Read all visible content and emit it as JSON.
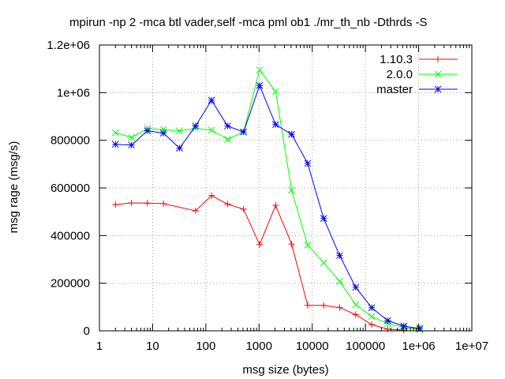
{
  "chart_data": {
    "type": "line",
    "title": "mpirun -np 2 -mca btl vader,self -mca pml ob1 ./mr_th_nb -Dthrds -S",
    "xlabel": "msg size (bytes)",
    "ylabel": "msg rage (msg/s)",
    "x_scale": "log",
    "xlim": [
      1,
      10000000
    ],
    "ylim": [
      0,
      1200000
    ],
    "grid": true,
    "legend_position": "top-right",
    "x_ticks": [
      1,
      10,
      100,
      1000,
      10000,
      100000,
      1000000,
      10000000
    ],
    "x_tick_labels": [
      "1",
      "10",
      "100",
      "1000",
      "10000",
      "100000",
      "1e+06",
      "1e+07"
    ],
    "y_ticks": [
      0,
      200000,
      400000,
      600000,
      800000,
      1000000,
      1200000
    ],
    "y_tick_labels": [
      "0",
      "200000",
      "400000",
      "600000",
      "800000",
      "1e+06",
      "1.2e+06"
    ],
    "x": [
      2,
      4,
      8,
      16,
      32,
      64,
      128,
      256,
      512,
      1024,
      2048,
      4096,
      8192,
      16384,
      32768,
      65536,
      131072,
      262144,
      524288,
      1048576
    ],
    "series": [
      {
        "name": "1.10.3",
        "color": "#ff0000",
        "marker": "plus",
        "values": [
          530000,
          537000,
          536000,
          534000,
          null,
          504000,
          568000,
          532000,
          511000,
          362000,
          527000,
          364000,
          107000,
          107000,
          98000,
          68000,
          26000,
          7000,
          3000,
          null
        ]
      },
      {
        "name": "2.0.0",
        "color": "#00ff00",
        "marker": "x",
        "values": [
          832000,
          812000,
          849000,
          845000,
          840000,
          850000,
          843000,
          804000,
          835000,
          1095000,
          1005000,
          590000,
          360000,
          286000,
          208000,
          110000,
          60000,
          30000,
          15000,
          5000
        ]
      },
      {
        "name": "master",
        "color": "#0000ff",
        "marker": "star",
        "values": [
          783000,
          780000,
          840000,
          830000,
          767000,
          860000,
          968000,
          860000,
          835000,
          1030000,
          866000,
          825000,
          703000,
          472000,
          316000,
          183000,
          97000,
          43000,
          20000,
          10000
        ]
      }
    ]
  }
}
